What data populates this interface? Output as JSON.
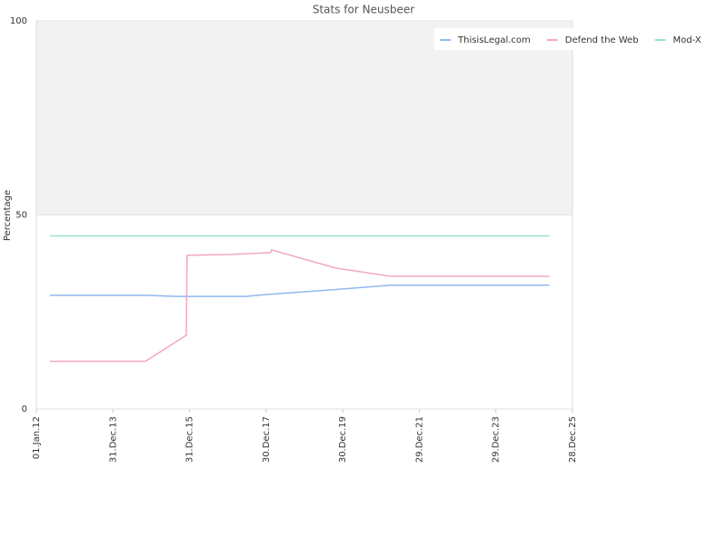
{
  "chart_data": {
    "type": "line",
    "title": "Stats for Neusbeer",
    "y_label": "Percentage",
    "x": [
      "2012-05-10",
      "2014-11-05",
      "2015-09-04",
      "2015-11-30",
      "2015-12-08",
      "2016-12-23",
      "2017-06-14",
      "2018-02-11",
      "2018-02-19",
      "2019-10-27",
      "2021-03-31",
      "2025-05-23"
    ],
    "series": [
      {
        "name": "ThisisLegal.com",
        "color": "#8fb9ee",
        "values": [
          29.3,
          29.3,
          29.0,
          29.0,
          29.0,
          29.0,
          29.0,
          29.6,
          29.6,
          30.8,
          31.9,
          31.9
        ]
      },
      {
        "name": "Defend the Web",
        "color": "#f2a6c8",
        "values": [
          12.3,
          12.3,
          17.5,
          19.0,
          39.6,
          39.8,
          40.0,
          40.3,
          41.0,
          36.3,
          34.2,
          34.2
        ]
      },
      {
        "name": "Mod-X",
        "color": "#99e3cf",
        "values": [
          44.6,
          44.6,
          44.6,
          44.6,
          44.6,
          44.6,
          44.6,
          44.6,
          44.6,
          44.6,
          44.6,
          44.6
        ]
      }
    ],
    "xlim": [
      "2012-01-01",
      "2025-12-28"
    ],
    "xticks": [
      {
        "value": "2012-01-01",
        "label": "01.Jan.12"
      },
      {
        "value": "2013-12-31",
        "label": "31.Dec.13"
      },
      {
        "value": "2015-12-31",
        "label": "31.Dec.15"
      },
      {
        "value": "2017-12-30",
        "label": "30.Dec.17"
      },
      {
        "value": "2019-12-30",
        "label": "30.Dec.19"
      },
      {
        "value": "2021-12-29",
        "label": "29.Dec.21"
      },
      {
        "value": "2023-12-29",
        "label": "29.Dec.23"
      },
      {
        "value": "2025-12-28",
        "label": "28.Dec.25"
      }
    ],
    "ylim": [
      0,
      100
    ],
    "yticks": [
      0,
      50,
      100
    ],
    "grid": true,
    "legend": "top-right"
  }
}
